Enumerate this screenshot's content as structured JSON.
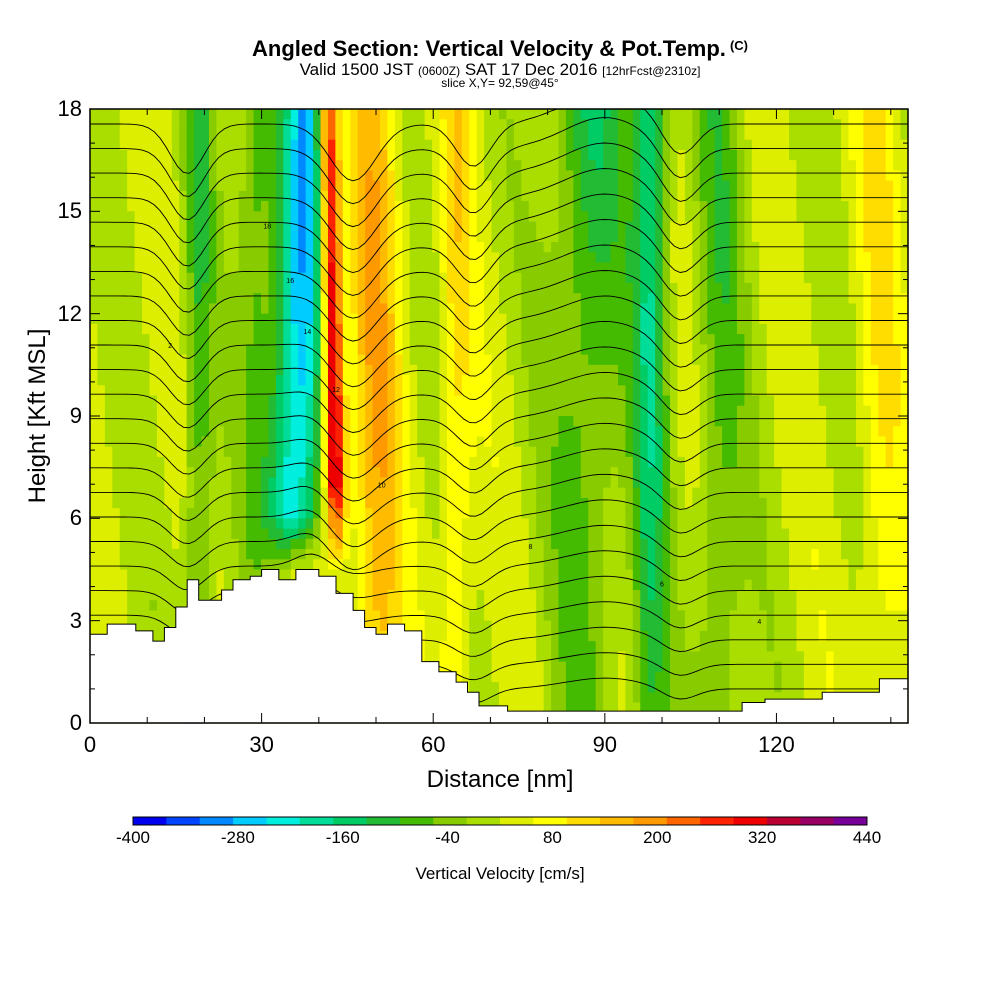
{
  "header": {
    "title": "Angled Section: Vertical Velocity & Pot.Temp.",
    "title_unit": "(C)",
    "valid_prefix": "Valid 1500 JST",
    "valid_zulu": "(0600Z)",
    "valid_date": "SAT 17 Dec 2016",
    "forecast": "[12hrFcst@2310z]",
    "slice": "slice X,Y= 92,59@45°"
  },
  "chart_data": {
    "type": "heatmap",
    "xlabel": "Distance [nm]",
    "ylabel": "Height [Kft MSL]",
    "xlim": [
      0,
      143
    ],
    "ylim": [
      0,
      18
    ],
    "x_ticks": [
      "0",
      "30",
      "60",
      "90",
      "120"
    ],
    "y_ticks": [
      "0",
      "3",
      "6",
      "9",
      "12",
      "15",
      "18"
    ],
    "colorbar": {
      "label": "Vertical Velocity [cm/s]",
      "range": [
        -400,
        440
      ],
      "step": 40,
      "tick_labels": [
        "-400",
        "-280",
        "-160",
        "-40",
        "80",
        "200",
        "320",
        "440"
      ],
      "colors": [
        "#0000ee",
        "#0044ff",
        "#0088ff",
        "#00ccff",
        "#00eedd",
        "#00dd99",
        "#00cc66",
        "#22bb33",
        "#44bb00",
        "#88cc00",
        "#aadd00",
        "#ddee00",
        "#ffff00",
        "#ffdd00",
        "#ffbb00",
        "#ff9900",
        "#ff6600",
        "#ff2200",
        "#ee0000",
        "#bb0033",
        "#990066",
        "#770099"
      ]
    },
    "terrain_ft": [
      [
        0,
        2.6
      ],
      [
        3,
        2.9
      ],
      [
        8,
        2.7
      ],
      [
        11,
        2.4
      ],
      [
        13,
        2.8
      ],
      [
        15,
        3.4
      ],
      [
        17,
        4.2
      ],
      [
        19,
        3.6
      ],
      [
        21,
        3.6
      ],
      [
        23,
        3.9
      ],
      [
        25,
        4.2
      ],
      [
        28,
        4.3
      ],
      [
        30,
        4.5
      ],
      [
        33,
        4.2
      ],
      [
        36,
        4.5
      ],
      [
        38,
        4.5
      ],
      [
        40,
        4.3
      ],
      [
        43,
        3.8
      ],
      [
        46,
        3.3
      ],
      [
        48,
        2.8
      ],
      [
        50,
        2.6
      ],
      [
        52,
        2.9
      ],
      [
        55,
        2.7
      ],
      [
        58,
        1.8
      ],
      [
        61,
        1.5
      ],
      [
        64,
        1.2
      ],
      [
        66,
        0.9
      ],
      [
        68,
        0.5
      ],
      [
        73,
        0.35
      ],
      [
        88,
        0.35
      ],
      [
        100,
        0.35
      ],
      [
        114,
        0.6
      ],
      [
        118,
        0.7
      ],
      [
        125,
        0.7
      ],
      [
        128,
        0.9
      ],
      [
        135,
        0.9
      ],
      [
        138,
        1.3
      ],
      [
        143,
        1.3
      ]
    ],
    "theta_labels": [
      "18",
      "16",
      "14",
      "12",
      "10",
      "8",
      "6",
      "4",
      "2"
    ]
  }
}
